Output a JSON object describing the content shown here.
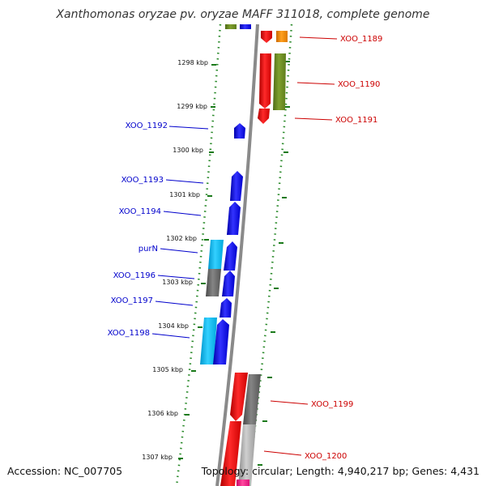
{
  "title": "Xanthomonas oryzae pv. oryzae MAFF 311018, complete genome",
  "accession": "Accession: NC_007705",
  "topology": "Topology: circular; Length: 4,940,217 bp; Genes: 4,431",
  "colors": {
    "forward_label": "#0000cc",
    "reverse_label": "#cc0000",
    "backbone": "#808080",
    "dotted_rings": "#2a8a2a",
    "tick": "#1a7a1a"
  },
  "ticks": [
    "1298 kbp",
    "1299 kbp",
    "1300 kbp",
    "1301 kbp",
    "1302 kbp",
    "1303 kbp",
    "1304 kbp",
    "1305 kbp",
    "1306 kbp",
    "1307 kbp"
  ],
  "genes": [
    {
      "label": "XOO_1189",
      "strand": "reverse",
      "color": "#ff0000"
    },
    {
      "label": "XOO_1190",
      "strand": "reverse",
      "color": "#ff0000"
    },
    {
      "label": "XOO_1191",
      "strand": "reverse",
      "color": "#ff0000"
    },
    {
      "label": "XOO_1192",
      "strand": "forward",
      "color": "#0000ff"
    },
    {
      "label": "XOO_1193",
      "strand": "forward",
      "color": "#0000ff"
    },
    {
      "label": "XOO_1194",
      "strand": "forward",
      "color": "#0000ff"
    },
    {
      "label": "purN",
      "strand": "forward",
      "color": "#0000ff"
    },
    {
      "label": "XOO_1196",
      "strand": "forward",
      "color": "#0000ff"
    },
    {
      "label": "XOO_1197",
      "strand": "forward",
      "color": "#0000ff"
    },
    {
      "label": "XOO_1198",
      "strand": "forward",
      "color": "#0000ff"
    },
    {
      "label": "XOO_1199",
      "strand": "reverse",
      "color": "#ff0000"
    },
    {
      "label": "XOO_1200",
      "strand": "reverse",
      "color": "#ff0000"
    }
  ],
  "cog_blocks": [
    "#6b8e23",
    "#ff8c00",
    "#00bfff",
    "#696969",
    "#a9a9a9",
    "#ff1493"
  ]
}
